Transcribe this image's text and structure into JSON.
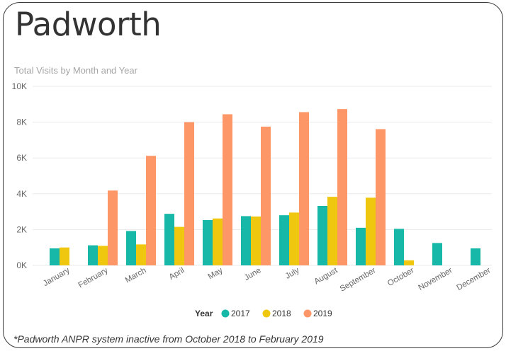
{
  "page_title": "Padworth",
  "footnote": "*Padworth ANPR system inactive from October 2018 to February 2019",
  "chart_data": {
    "type": "bar",
    "title": "Total Visits by Month and Year",
    "xlabel": "",
    "ylabel": "",
    "ylim": [
      0,
      10000
    ],
    "yticks": [
      0,
      2000,
      4000,
      6000,
      8000,
      10000
    ],
    "ytick_labels": [
      "0K",
      "2K",
      "4K",
      "6K",
      "8K",
      "10K"
    ],
    "categories": [
      "January",
      "February",
      "March",
      "April",
      "May",
      "June",
      "July",
      "August",
      "September",
      "October",
      "November",
      "December"
    ],
    "legend_title": "Year",
    "legend_position": "bottom-center",
    "grid": true,
    "series": [
      {
        "name": "2017",
        "color": "#17b8a8",
        "values": [
          950,
          1120,
          1920,
          2880,
          2530,
          2750,
          2800,
          3320,
          2100,
          2040,
          1250,
          950
        ]
      },
      {
        "name": "2018",
        "color": "#f0c70f",
        "values": [
          1000,
          1090,
          1170,
          2150,
          2620,
          2730,
          2950,
          3830,
          3780,
          280,
          null,
          null
        ]
      },
      {
        "name": "2019",
        "color": "#fd9767",
        "values": [
          null,
          4180,
          6120,
          8000,
          8440,
          7750,
          8560,
          8730,
          7610,
          null,
          null,
          null
        ]
      }
    ]
  }
}
